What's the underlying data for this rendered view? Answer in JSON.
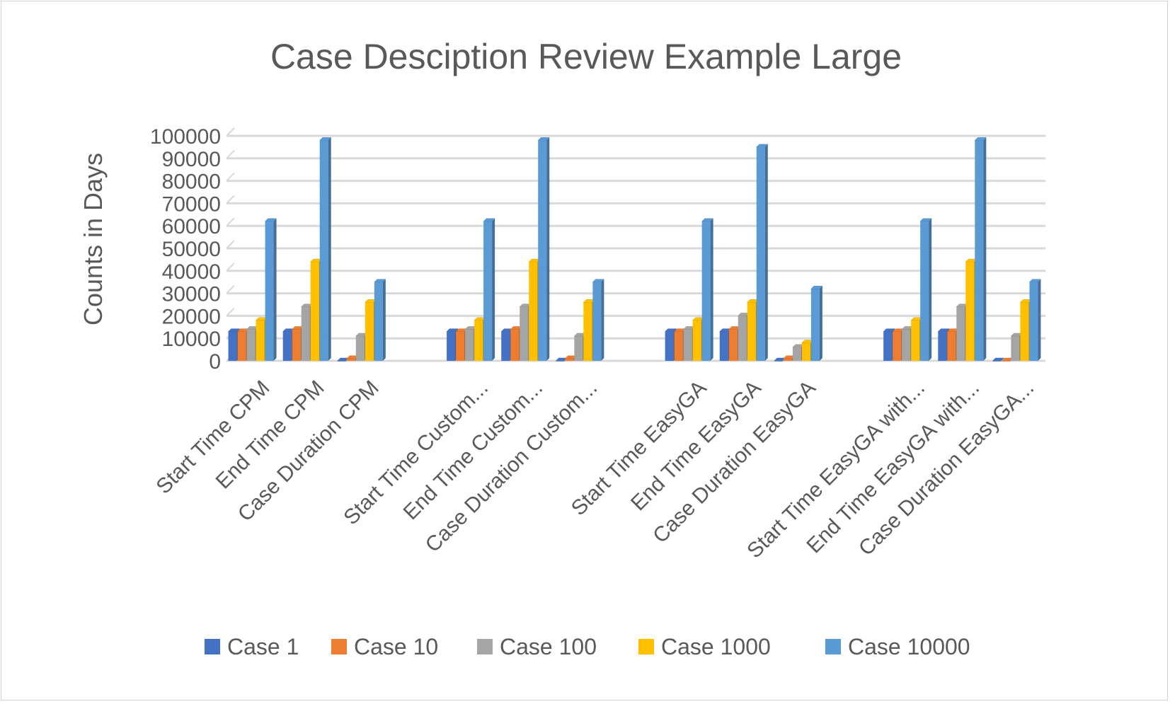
{
  "chart_data": {
    "type": "bar",
    "title": "Case Desciption Review Example Large",
    "xlabel": "",
    "ylabel": "Counts in Days",
    "ylim": [
      0,
      100000
    ],
    "yticks": [
      0,
      10000,
      20000,
      30000,
      40000,
      50000,
      60000,
      70000,
      80000,
      90000,
      100000
    ],
    "grid": true,
    "legend_position": "bottom",
    "categories": [
      "Start Time CPM",
      "End Time CPM",
      "Case Duration CPM",
      "",
      "Start Time Custom...",
      "End Time Custom...",
      "Case Duration Custom...",
      "",
      "Start Time EasyGA",
      "End Time EasyGA",
      "Case Duration EasyGA",
      "",
      "Start Time EasyGA with...",
      "End  Time EasyGA with...",
      "Case Duration EasyGA..."
    ],
    "series": [
      {
        "name": "Case 1",
        "color": "#4472C4",
        "values": [
          13000,
          13000,
          0,
          null,
          13000,
          13000,
          0,
          null,
          13000,
          13000,
          0,
          null,
          13000,
          13000,
          0
        ]
      },
      {
        "name": "Case 10",
        "color": "#ED7D31",
        "values": [
          13000,
          14000,
          1000,
          null,
          13000,
          14000,
          1000,
          null,
          13000,
          14000,
          1000,
          null,
          13000,
          13000,
          0
        ]
      },
      {
        "name": "Case 100",
        "color": "#A5A5A5",
        "values": [
          14000,
          24000,
          11000,
          null,
          14000,
          24000,
          11000,
          null,
          14000,
          20000,
          6000,
          null,
          14000,
          24000,
          11000
        ]
      },
      {
        "name": "Case 1000",
        "color": "#FFC000",
        "values": [
          18000,
          44000,
          26000,
          null,
          18000,
          44000,
          26000,
          null,
          18000,
          26000,
          8000,
          null,
          18000,
          44000,
          26000
        ]
      },
      {
        "name": "Case 10000",
        "color": "#5B9BD5",
        "values": [
          62000,
          98000,
          35000,
          null,
          62000,
          98000,
          35000,
          null,
          62000,
          95000,
          32000,
          null,
          62000,
          98000,
          35000
        ]
      }
    ]
  }
}
